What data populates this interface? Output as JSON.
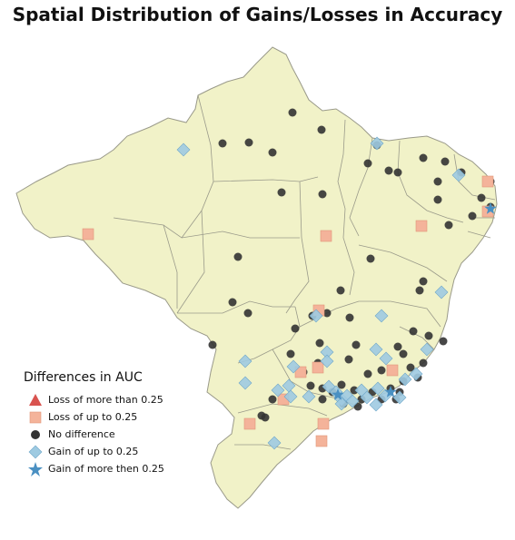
{
  "title": "Spatial Distribution of Gains/Losses in Accuracy",
  "legend": {
    "title": "Differences in AUC",
    "items": [
      {
        "label": "Loss of more than 0.25",
        "marker": "triangle",
        "color": "#d9534f"
      },
      {
        "label": "Loss of up to 0.25",
        "marker": "square",
        "color": "#f4b39a"
      },
      {
        "label": "No difference",
        "marker": "circle",
        "color": "#333333"
      },
      {
        "label": "Gain of up to 0.25",
        "marker": "diamond",
        "color": "#9ecae1"
      },
      {
        "label": "Gain of more then 0.25",
        "marker": "star",
        "color": "#4a90c2"
      }
    ]
  },
  "colors": {
    "land": "#f1f2c8",
    "border": "#9a9a8a",
    "circle": "#333333",
    "square": "#f4b39a",
    "diamond": "#9ecae1",
    "star": "#4a90c2"
  }
}
